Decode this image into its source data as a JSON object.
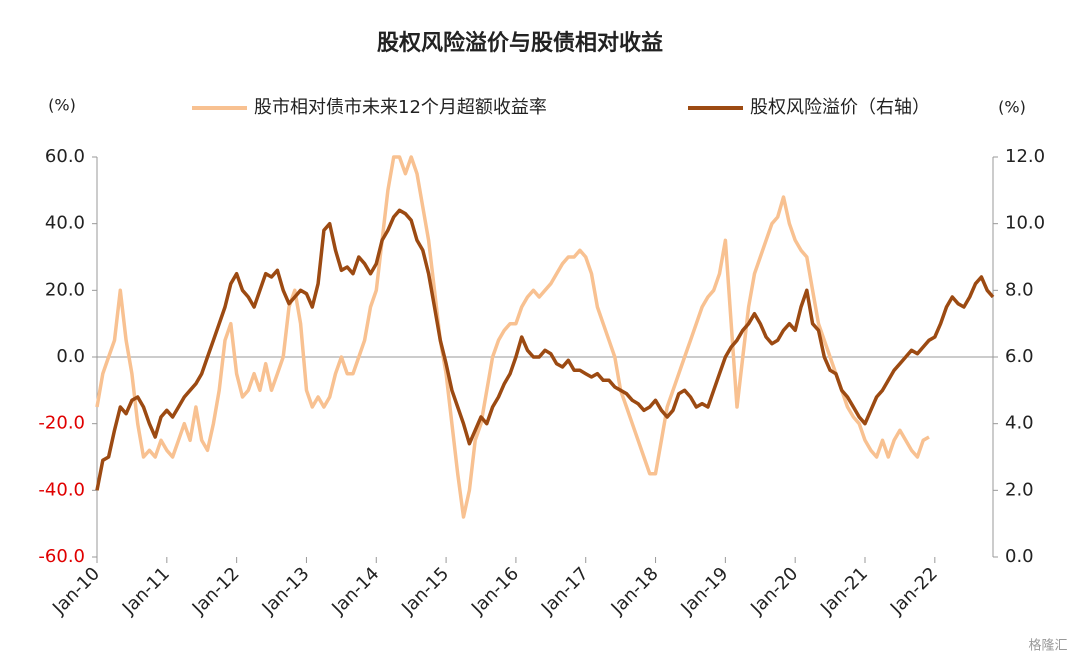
{
  "chart_data": {
    "type": "line",
    "title": "股权风险溢价与股债相对收益",
    "y_unit": "(%)",
    "y2_unit": "(%)",
    "watermark": "格隆汇",
    "categories": [
      "Jan-10",
      null,
      null,
      null,
      null,
      null,
      null,
      null,
      null,
      null,
      null,
      null,
      "Jan-11",
      null,
      null,
      null,
      null,
      null,
      null,
      null,
      null,
      null,
      null,
      null,
      "Jan-12",
      null,
      null,
      null,
      null,
      null,
      null,
      null,
      null,
      null,
      null,
      null,
      "Jan-13",
      null,
      null,
      null,
      null,
      null,
      null,
      null,
      null,
      null,
      null,
      null,
      "Jan-14",
      null,
      null,
      null,
      null,
      null,
      null,
      null,
      null,
      null,
      null,
      null,
      "Jan-15",
      null,
      null,
      null,
      null,
      null,
      null,
      null,
      null,
      null,
      null,
      null,
      "Jan-16",
      null,
      null,
      null,
      null,
      null,
      null,
      null,
      null,
      null,
      null,
      null,
      "Jan-17",
      null,
      null,
      null,
      null,
      null,
      null,
      null,
      null,
      null,
      null,
      null,
      "Jan-18",
      null,
      null,
      null,
      null,
      null,
      null,
      null,
      null,
      null,
      null,
      null,
      "Jan-19",
      null,
      null,
      null,
      null,
      null,
      null,
      null,
      null,
      null,
      null,
      null,
      "Jan-20",
      null,
      null,
      null,
      null,
      null,
      null,
      null,
      null,
      null,
      null,
      null,
      "Jan-21",
      null,
      null,
      null,
      null,
      null,
      null,
      null,
      null,
      null,
      null,
      null,
      "Jan-22",
      null,
      null,
      null,
      null,
      null,
      null,
      null,
      null,
      null,
      null
    ],
    "series": [
      {
        "name": "股市相对债市未来12个月超额收益率",
        "color": "#f8c191",
        "axis": "y",
        "values": [
          -15,
          -5,
          0,
          5,
          20,
          5,
          -5,
          -20,
          -30,
          -28,
          -30,
          -25,
          -28,
          -30,
          -25,
          -20,
          -25,
          -15,
          -25,
          -28,
          -20,
          -10,
          5,
          10,
          -5,
          -12,
          -10,
          -5,
          -10,
          -2,
          -10,
          -5,
          0,
          15,
          20,
          10,
          -10,
          -15,
          -12,
          -15,
          -12,
          -5,
          0,
          -5,
          -5,
          0,
          5,
          15,
          20,
          35,
          50,
          60,
          60,
          55,
          60,
          55,
          45,
          35,
          20,
          5,
          -5,
          -20,
          -35,
          -48,
          -40,
          -25,
          -20,
          -10,
          0,
          5,
          8,
          10,
          10,
          15,
          18,
          20,
          18,
          20,
          22,
          25,
          28,
          30,
          30,
          32,
          30,
          25,
          15,
          10,
          5,
          0,
          -10,
          -15,
          -20,
          -25,
          -30,
          -35,
          -35,
          -25,
          -15,
          -10,
          -5,
          0,
          5,
          10,
          15,
          18,
          20,
          25,
          35,
          10,
          -15,
          0,
          15,
          25,
          30,
          35,
          40,
          42,
          48,
          40,
          35,
          32,
          30,
          20,
          10,
          5,
          0,
          -5,
          -10,
          -15,
          -18,
          -20,
          -25,
          -28,
          -30,
          -25,
          -30,
          -25,
          -22,
          -25,
          -28,
          -30,
          -25,
          -24,
          null,
          null,
          null,
          null,
          null,
          null,
          null,
          null,
          null,
          null,
          null
        ]
      },
      {
        "name": "股权风险溢价（右轴）",
        "color": "#9c4a12",
        "axis": "y2",
        "values": [
          2.0,
          2.9,
          3.0,
          3.8,
          4.5,
          4.3,
          4.7,
          4.8,
          4.5,
          4.0,
          3.6,
          4.2,
          4.4,
          4.2,
          4.5,
          4.8,
          5.0,
          5.2,
          5.5,
          6.0,
          6.5,
          7.0,
          7.5,
          8.2,
          8.5,
          8.0,
          7.8,
          7.5,
          8.0,
          8.5,
          8.4,
          8.6,
          8.0,
          7.6,
          7.8,
          8.0,
          7.9,
          7.5,
          8.2,
          9.8,
          10.0,
          9.2,
          8.6,
          8.7,
          8.5,
          9.0,
          8.8,
          8.5,
          8.8,
          9.5,
          9.8,
          10.2,
          10.4,
          10.3,
          10.1,
          9.5,
          9.2,
          8.5,
          7.5,
          6.5,
          5.8,
          5.0,
          4.5,
          4.0,
          3.4,
          3.8,
          4.2,
          4.0,
          4.5,
          4.8,
          5.2,
          5.5,
          6.0,
          6.6,
          6.2,
          6.0,
          6.0,
          6.2,
          6.1,
          5.8,
          5.7,
          5.9,
          5.6,
          5.6,
          5.5,
          5.4,
          5.5,
          5.3,
          5.3,
          5.1,
          5.0,
          4.9,
          4.7,
          4.6,
          4.4,
          4.5,
          4.7,
          4.4,
          4.2,
          4.4,
          4.9,
          5.0,
          4.8,
          4.5,
          4.6,
          4.5,
          5.0,
          5.5,
          6.0,
          6.3,
          6.5,
          6.8,
          7.0,
          7.3,
          7.0,
          6.6,
          6.4,
          6.5,
          6.8,
          7.0,
          6.8,
          7.5,
          8.0,
          7.0,
          6.8,
          6.0,
          5.6,
          5.5,
          5.0,
          4.8,
          4.5,
          4.2,
          4.0,
          4.4,
          4.8,
          5.0,
          5.3,
          5.6,
          5.8,
          6.0,
          6.2,
          6.1,
          6.3,
          6.5,
          6.6,
          7.0,
          7.5,
          7.8,
          7.6,
          7.5,
          7.8,
          8.2,
          8.4,
          8.0,
          7.8
        ]
      }
    ],
    "ylim": [
      -60,
      60
    ],
    "yticks": [
      {
        "value": -60,
        "label": "-60.0"
      },
      {
        "value": -40,
        "label": "-40.0"
      },
      {
        "value": -20,
        "label": "-20.0"
      },
      {
        "value": 0,
        "label": "0.0"
      },
      {
        "value": 20,
        "label": "20.0"
      },
      {
        "value": 40,
        "label": "40.0"
      },
      {
        "value": 60,
        "label": "60.0"
      }
    ],
    "y2lim": [
      0,
      12
    ],
    "y2ticks": [
      {
        "value": 0,
        "label": "0.0"
      },
      {
        "value": 2,
        "label": "2.0"
      },
      {
        "value": 4,
        "label": "4.0"
      },
      {
        "value": 6,
        "label": "6.0"
      },
      {
        "value": 8,
        "label": "8.0"
      },
      {
        "value": 10,
        "label": "10.0"
      },
      {
        "value": 12,
        "label": "12.0"
      }
    ],
    "negative_tick_color": "#e00000",
    "legend": "top"
  }
}
